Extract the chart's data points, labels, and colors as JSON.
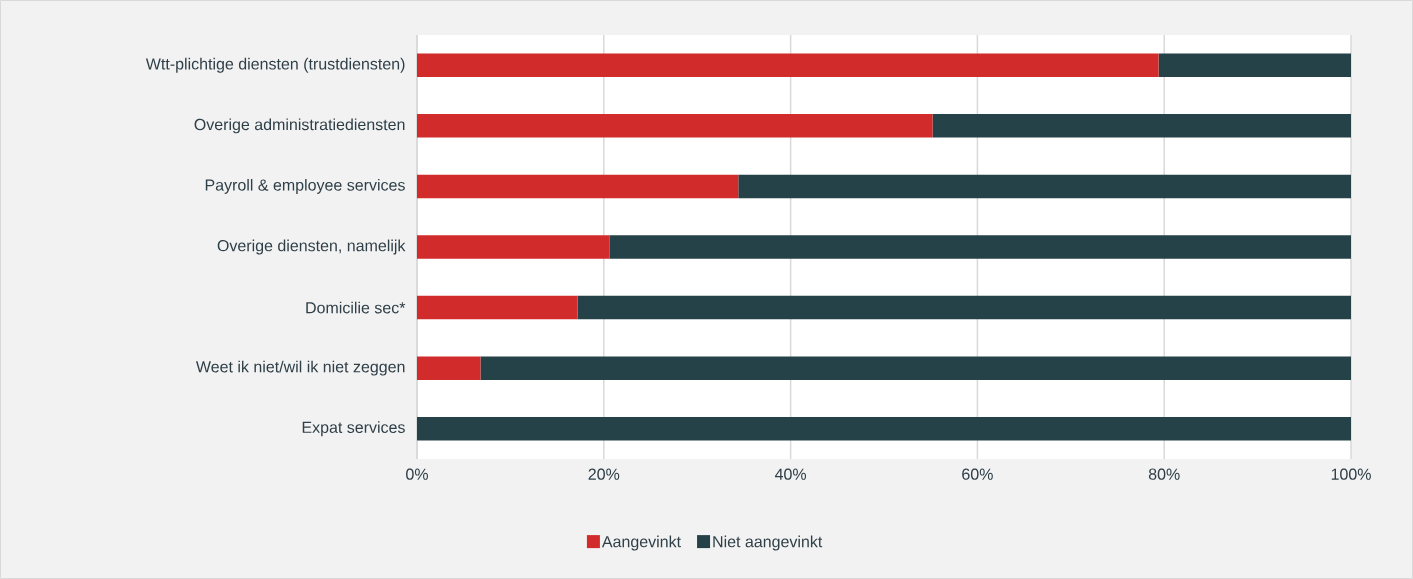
{
  "chart_data": {
    "type": "bar",
    "orientation": "horizontal",
    "stacked": true,
    "categories": [
      "Wtt-plichtige diensten (trustdiensten)",
      "Overige administratiediensten",
      "Payroll & employee services",
      "Overige diensten, namelijk",
      "Domicilie sec*",
      "Weet ik niet/wil ik niet zeggen",
      "Expat services"
    ],
    "series": [
      {
        "name": "Aangevinkt",
        "color": "#d22b2b",
        "values": [
          79.4,
          55.2,
          34.4,
          20.6,
          17.2,
          6.8,
          0
        ]
      },
      {
        "name": "Niet aangevinkt",
        "color": "#264249",
        "values": [
          20.6,
          44.8,
          65.6,
          79.4,
          82.8,
          93.2,
          100
        ]
      }
    ],
    "xlim": [
      0,
      100
    ],
    "xticks": [
      {
        "value": 0,
        "label": "0%"
      },
      {
        "value": 20,
        "label": "20%"
      },
      {
        "value": 40,
        "label": "40%"
      },
      {
        "value": 60,
        "label": "60%"
      },
      {
        "value": 80,
        "label": "80%"
      },
      {
        "value": 100,
        "label": "100%"
      }
    ],
    "grid": "x",
    "legend": "bottom"
  }
}
